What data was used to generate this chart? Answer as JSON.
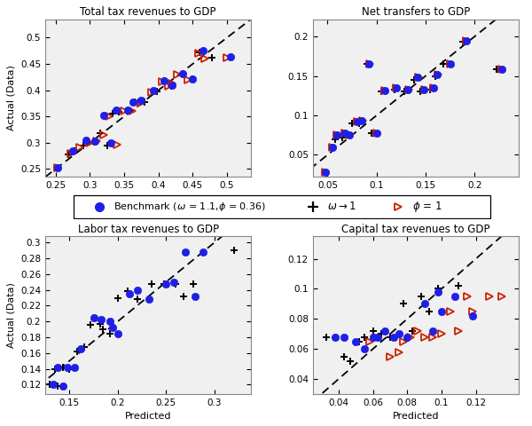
{
  "panel_titles": [
    "Total tax revenues to GDP",
    "Net transfers to GDP",
    "Labor tax revenues to GDP",
    "Capital tax revenues to GDP"
  ],
  "xlabel": "Predicted",
  "ylabel": "Actual (Data)",
  "panel1": {
    "xlim": [
      0.235,
      0.535
    ],
    "ylim": [
      0.235,
      0.535
    ],
    "xticks": [
      0.25,
      0.3,
      0.35,
      0.4,
      0.45,
      0.5
    ],
    "yticks": [
      0.25,
      0.3,
      0.35,
      0.4,
      0.45,
      0.5
    ],
    "benchmark_x": [
      0.253,
      0.275,
      0.295,
      0.308,
      0.32,
      0.33,
      0.338,
      0.355,
      0.363,
      0.375,
      0.392,
      0.408,
      0.42,
      0.435,
      0.45,
      0.465,
      0.505
    ],
    "benchmark_y": [
      0.253,
      0.285,
      0.305,
      0.303,
      0.352,
      0.3,
      0.363,
      0.363,
      0.378,
      0.38,
      0.4,
      0.418,
      0.41,
      0.432,
      0.422,
      0.475,
      0.463
    ],
    "omega_x": [
      0.253,
      0.268,
      0.278,
      0.29,
      0.298,
      0.308,
      0.315,
      0.325,
      0.333,
      0.342,
      0.358,
      0.365,
      0.38,
      0.398,
      0.408,
      0.418,
      0.435,
      0.45,
      0.46,
      0.478
    ],
    "omega_y": [
      0.253,
      0.278,
      0.285,
      0.295,
      0.302,
      0.302,
      0.318,
      0.295,
      0.355,
      0.358,
      0.36,
      0.378,
      0.378,
      0.397,
      0.418,
      0.407,
      0.432,
      0.422,
      0.472,
      0.462
    ],
    "phi_x": [
      0.253,
      0.272,
      0.285,
      0.3,
      0.31,
      0.32,
      0.328,
      0.34,
      0.35,
      0.362,
      0.375,
      0.39,
      0.405,
      0.415,
      0.428,
      0.443,
      0.458,
      0.42,
      0.468,
      0.5
    ],
    "phi_y": [
      0.253,
      0.28,
      0.292,
      0.3,
      0.303,
      0.315,
      0.35,
      0.297,
      0.36,
      0.36,
      0.375,
      0.396,
      0.416,
      0.407,
      0.43,
      0.42,
      0.47,
      0.413,
      0.46,
      0.462
    ]
  },
  "panel2": {
    "xlim": [
      0.035,
      0.245
    ],
    "ylim": [
      0.022,
      0.222
    ],
    "xticks": [
      0.05,
      0.1,
      0.15,
      0.2
    ],
    "yticks": [
      0.05,
      0.1,
      0.15,
      0.2
    ],
    "benchmark_x": [
      0.048,
      0.055,
      0.06,
      0.068,
      0.072,
      0.08,
      0.085,
      0.092,
      0.1,
      0.108,
      0.12,
      0.132,
      0.142,
      0.148,
      0.158,
      0.162,
      0.175,
      0.192,
      0.228
    ],
    "benchmark_y": [
      0.028,
      0.06,
      0.075,
      0.078,
      0.075,
      0.092,
      0.093,
      0.165,
      0.078,
      0.132,
      0.135,
      0.133,
      0.148,
      0.133,
      0.135,
      0.152,
      0.165,
      0.195,
      0.158
    ],
    "omega_x": [
      0.048,
      0.055,
      0.058,
      0.065,
      0.068,
      0.075,
      0.082,
      0.09,
      0.095,
      0.105,
      0.118,
      0.128,
      0.138,
      0.145,
      0.155,
      0.16,
      0.168,
      0.188,
      0.222
    ],
    "omega_y": [
      0.028,
      0.06,
      0.07,
      0.072,
      0.075,
      0.09,
      0.09,
      0.165,
      0.078,
      0.13,
      0.133,
      0.13,
      0.145,
      0.13,
      0.133,
      0.15,
      0.165,
      0.193,
      0.158
    ],
    "phi_x": [
      0.048,
      0.055,
      0.06,
      0.068,
      0.072,
      0.08,
      0.086,
      0.093,
      0.1,
      0.108,
      0.12,
      0.133,
      0.143,
      0.149,
      0.158,
      0.163,
      0.175,
      0.192,
      0.228
    ],
    "phi_y": [
      0.028,
      0.06,
      0.075,
      0.078,
      0.075,
      0.092,
      0.093,
      0.165,
      0.078,
      0.132,
      0.135,
      0.133,
      0.148,
      0.133,
      0.135,
      0.152,
      0.165,
      0.195,
      0.158
    ]
  },
  "panel3": {
    "xlim": [
      0.125,
      0.338
    ],
    "ylim": [
      0.108,
      0.308
    ],
    "xticks": [
      0.15,
      0.2,
      0.25,
      0.3
    ],
    "yticks": [
      0.12,
      0.14,
      0.16,
      0.18,
      0.2,
      0.22,
      0.24,
      0.26,
      0.28,
      0.3
    ],
    "benchmark_x": [
      0.133,
      0.138,
      0.143,
      0.148,
      0.155,
      0.162,
      0.175,
      0.183,
      0.192,
      0.195,
      0.2,
      0.212,
      0.22,
      0.232,
      0.25,
      0.258,
      0.27,
      0.28,
      0.288
    ],
    "benchmark_y": [
      0.12,
      0.142,
      0.118,
      0.142,
      0.142,
      0.165,
      0.205,
      0.202,
      0.2,
      0.192,
      0.185,
      0.235,
      0.24,
      0.228,
      0.248,
      0.25,
      0.288,
      0.232,
      0.288
    ],
    "omega_x": [
      0.13,
      0.135,
      0.138,
      0.143,
      0.15,
      0.158,
      0.165,
      0.172,
      0.182,
      0.185,
      0.192,
      0.2,
      0.21,
      0.22,
      0.235,
      0.248,
      0.26,
      0.268,
      0.278,
      0.32
    ],
    "omega_y": [
      0.12,
      0.14,
      0.118,
      0.142,
      0.14,
      0.162,
      0.168,
      0.196,
      0.197,
      0.19,
      0.185,
      0.23,
      0.238,
      0.228,
      0.248,
      0.247,
      0.248,
      0.232,
      0.248,
      0.29
    ]
  },
  "panel4": {
    "xlim": [
      0.025,
      0.145
    ],
    "ylim": [
      0.03,
      0.135
    ],
    "xticks": [
      0.04,
      0.06,
      0.08,
      0.1,
      0.12
    ],
    "yticks": [
      0.04,
      0.06,
      0.08,
      0.1,
      0.12
    ],
    "benchmark_x": [
      0.038,
      0.043,
      0.05,
      0.055,
      0.06,
      0.063,
      0.067,
      0.072,
      0.075,
      0.08,
      0.09,
      0.095,
      0.098,
      0.1,
      0.108,
      0.118
    ],
    "benchmark_y": [
      0.068,
      0.068,
      0.065,
      0.06,
      0.068,
      0.068,
      0.072,
      0.068,
      0.07,
      0.068,
      0.09,
      0.072,
      0.098,
      0.085,
      0.095,
      0.082
    ],
    "omega_x": [
      0.033,
      0.038,
      0.043,
      0.047,
      0.052,
      0.055,
      0.06,
      0.063,
      0.065,
      0.07,
      0.078,
      0.083,
      0.088,
      0.093,
      0.098,
      0.11
    ],
    "omega_y": [
      0.068,
      0.068,
      0.055,
      0.052,
      0.065,
      0.068,
      0.072,
      0.068,
      0.07,
      0.068,
      0.09,
      0.072,
      0.095,
      0.085,
      0.1,
      0.102
    ],
    "phi_x": [
      0.058,
      0.062,
      0.07,
      0.075,
      0.078,
      0.082,
      0.086,
      0.09,
      0.095,
      0.1,
      0.105,
      0.11,
      0.115,
      0.118,
      0.128,
      0.135
    ],
    "phi_y": [
      0.065,
      0.068,
      0.055,
      0.058,
      0.065,
      0.068,
      0.072,
      0.068,
      0.068,
      0.07,
      0.085,
      0.072,
      0.095,
      0.085,
      0.095,
      0.095
    ]
  },
  "blue": "#1f1fe8",
  "red": "#cc2200",
  "black": "#000000",
  "bg_color": "#f0f0f0"
}
